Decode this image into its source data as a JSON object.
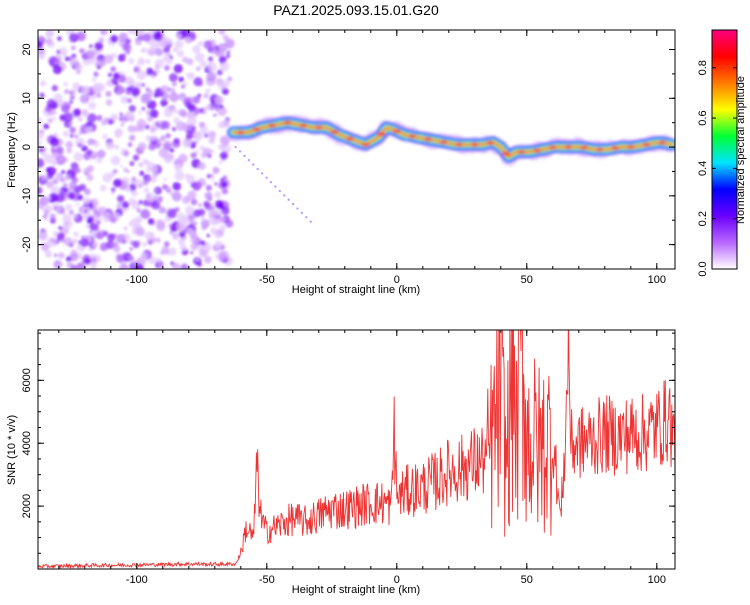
{
  "title": "PAZ1.2025.093.15.01.G20",
  "chart_data": [
    {
      "type": "heatmap",
      "title": "PAZ1.2025.093.15.01.G20",
      "xlabel": "Height of straight line (km)",
      "ylabel": "Frequency (Hz)",
      "xlim": [
        -138,
        107
      ],
      "ylim": [
        -25,
        24
      ],
      "xticks": [
        -100,
        -50,
        0,
        50,
        100
      ],
      "yticks": [
        -20,
        -10,
        0,
        10,
        20
      ],
      "colorbar": {
        "label": "Normalized spectral amplitude",
        "range": [
          0,
          0.95
        ],
        "ticks": [
          "0.0",
          "0.2",
          "0.4",
          "0.6",
          "0.8"
        ],
        "colors": [
          "#ffffff",
          "#b866ff",
          "#6a00ff",
          "#0000ff",
          "#00e5ff",
          "#00ff33",
          "#ffff00",
          "#ff7a00",
          "#ff0000",
          "#ff0080"
        ]
      },
      "noise_region": {
        "x": [
          -138,
          -64
        ],
        "y": [
          -25,
          24
        ]
      },
      "signal_track": {
        "x": [
          -63,
          -57,
          -52,
          -47,
          -42,
          -37,
          -32,
          -27,
          -22,
          -17,
          -12,
          -7,
          -4,
          -1,
          3,
          8,
          13,
          18,
          23,
          28,
          33,
          37,
          40,
          43,
          46,
          51,
          56,
          61,
          66,
          71,
          76,
          81,
          86,
          91,
          96,
          101,
          106
        ],
        "y": [
          3,
          3,
          4,
          4.5,
          5,
          4.5,
          4,
          4,
          2.5,
          1.5,
          0.5,
          2,
          4,
          3.5,
          2.5,
          2,
          1.5,
          1,
          0.5,
          0.5,
          0.5,
          1,
          0,
          -2,
          -1,
          -1,
          -0.5,
          0,
          0,
          0,
          -0.5,
          -0.5,
          0,
          0,
          0.5,
          1,
          0.5
        ]
      }
    },
    {
      "type": "line",
      "xlabel": "Height of straight line (km)",
      "ylabel": "SNR (10 * v/v)",
      "xlim": [
        -138,
        107
      ],
      "ylim": [
        0,
        7600
      ],
      "xticks": [
        -100,
        -50,
        0,
        50,
        100
      ],
      "yticks": [
        2000,
        4000,
        6000
      ],
      "line_color": "#ee3333",
      "series": [
        {
          "x": [
            -138,
            -120,
            -100,
            -80,
            -70,
            -62,
            -60,
            -58,
            -55,
            -54,
            -52,
            -50,
            -45,
            -40,
            -35,
            -30,
            -25,
            -20,
            -15,
            -10,
            -5,
            -2,
            -1,
            0,
            5,
            10,
            15,
            20,
            25,
            30,
            35,
            38,
            40,
            42,
            45,
            46,
            48,
            50,
            55,
            60,
            63,
            65,
            66,
            67,
            70,
            75,
            80,
            85,
            90,
            95,
            100,
            105,
            107
          ],
          "y": [
            80,
            110,
            130,
            160,
            150,
            160,
            500,
            1300,
            1000,
            3300,
            1500,
            1200,
            1400,
            1600,
            1500,
            1700,
            1900,
            1900,
            2000,
            2100,
            2100,
            2000,
            4600,
            2300,
            2500,
            2600,
            2800,
            3100,
            3200,
            3400,
            3500,
            4500,
            5700,
            3300,
            6600,
            4000,
            7200,
            4200,
            3800,
            4200,
            1600,
            4300,
            7400,
            3900,
            4000,
            4100,
            4300,
            4200,
            4300,
            4300,
            4500,
            4800,
            3900
          ]
        }
      ]
    }
  ]
}
